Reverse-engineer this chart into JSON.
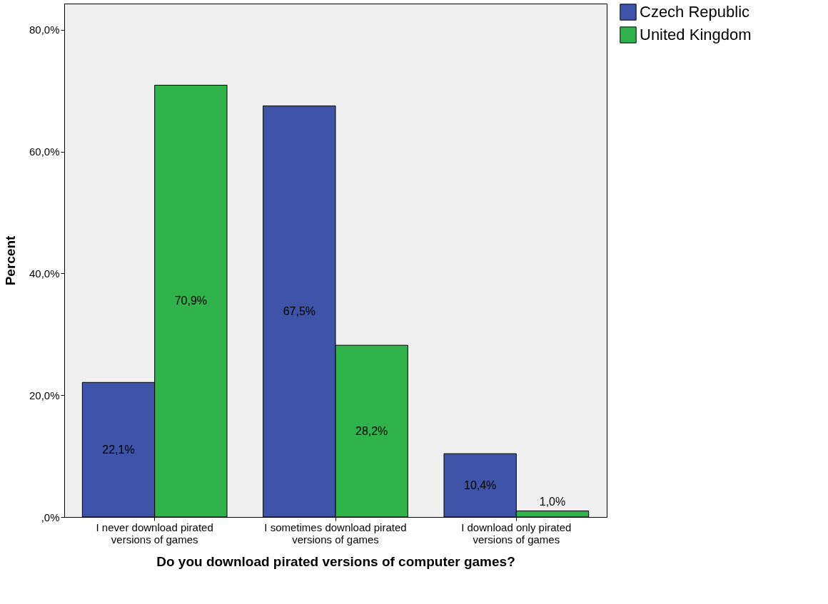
{
  "chart_data": {
    "type": "bar",
    "xlabel": "Do you download pirated versions of computer games?",
    "ylabel": "Percent",
    "categories": [
      "I never download pirated versions of games",
      "I sometimes download pirated versions of games",
      "I download only pirated versions of games"
    ],
    "series": [
      {
        "name": "Czech Republic",
        "color": "#3e54a8",
        "values": [
          22.1,
          67.5,
          10.4
        ],
        "value_labels": [
          "22,1%",
          "67,5%",
          "10,4%"
        ]
      },
      {
        "name": "United Kingdom",
        "color": "#2fb34a",
        "values": [
          70.9,
          28.2,
          1.0
        ],
        "value_labels": [
          "70,9%",
          "28,2%",
          "1,0%"
        ]
      }
    ],
    "ylim": [
      0,
      84.3
    ],
    "yticks": [
      {
        "value": 0,
        "label": ",0%"
      },
      {
        "value": 20,
        "label": "20,0%"
      },
      {
        "value": 40,
        "label": "40,0%"
      },
      {
        "value": 60,
        "label": "60,0%"
      },
      {
        "value": 80,
        "label": "80,0%"
      }
    ],
    "grid": false,
    "legend": "top right"
  }
}
